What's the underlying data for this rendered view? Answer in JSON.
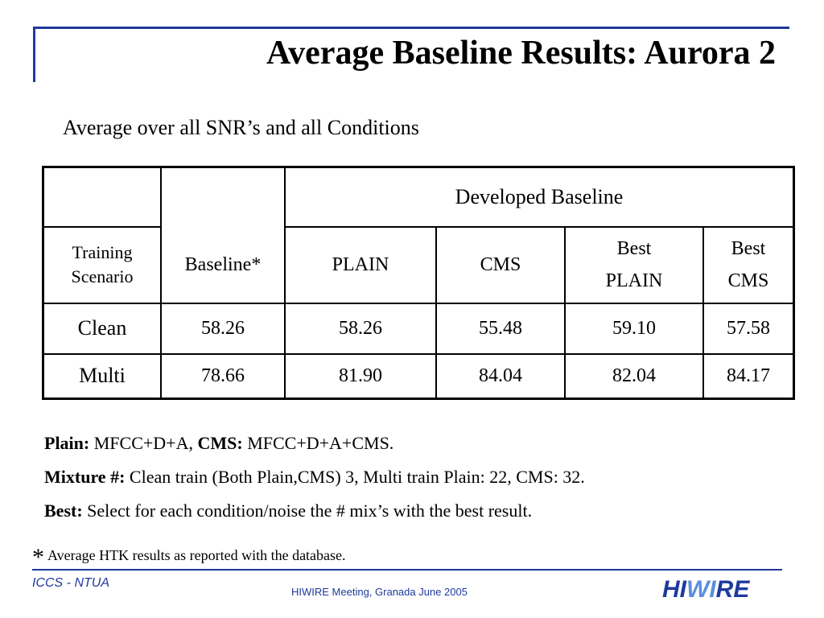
{
  "title": "Average Baseline Results: Aurora 2",
  "subtitle": "Average over all SNR’s and all Conditions",
  "table": {
    "developed_header": "Developed Baseline",
    "training_scenario": [
      "Training",
      "Scenario"
    ],
    "baseline_header": "Baseline*",
    "plain_header": "PLAIN",
    "cms_header": "CMS",
    "best_plain": [
      "Best",
      "PLAIN"
    ],
    "best_cms": [
      "Best",
      "CMS"
    ],
    "rows": [
      {
        "label": "Clean",
        "values": [
          "58.26",
          "58.26",
          "55.48",
          "59.10",
          "57.58"
        ]
      },
      {
        "label": "Multi",
        "values": [
          "78.66",
          "81.90",
          "84.04",
          "82.04",
          "84.17"
        ]
      }
    ]
  },
  "notes": {
    "plain_label": "Plain:",
    "plain_text": " MFCC+D+A, ",
    "cms_label": "CMS:",
    "cms_text": " MFCC+D+A+CMS.",
    "mixture_label": "Mixture #:",
    "mixture_text": " Clean train (Both Plain,CMS) 3, Multi train Plain: 22, CMS: 32.",
    "best_label": "Best:",
    "best_text": " Select  for each  condition/noise  the # mix’s  with the best result."
  },
  "footnote": {
    "star": "*",
    "text": "Average HTK results as reported with the database."
  },
  "footer": {
    "left": "ICCS - NTUA",
    "center": "HIWIRE Meeting, Granada June 2005",
    "logo_part1": "HI",
    "logo_part2": "WI",
    "logo_part3": "RE"
  }
}
